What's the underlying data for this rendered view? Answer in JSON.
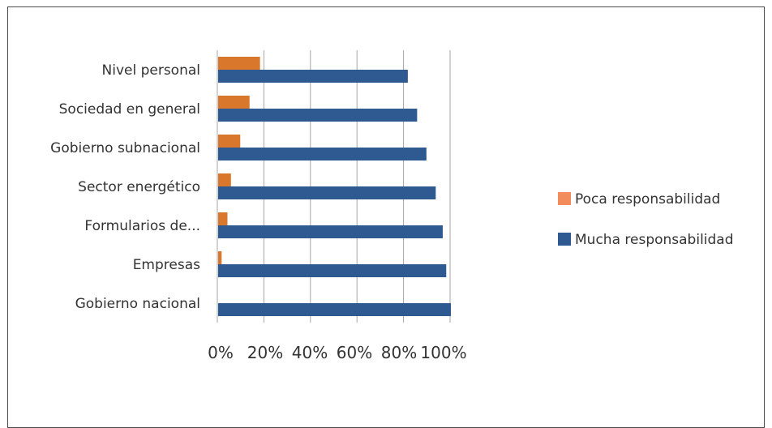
{
  "chart_data": {
    "type": "bar",
    "orientation": "horizontal",
    "categories": [
      "Nivel personal",
      "Sociedad en general",
      "Gobierno subnacional",
      "Sector energético",
      "Formularios de...",
      "Empresas",
      "Gobierno nacional"
    ],
    "series": [
      {
        "name": "Poca responsabilidad",
        "color": "#D9782D",
        "values": [
          18,
          13.5,
          9.5,
          5.5,
          4,
          1.5,
          0
        ]
      },
      {
        "name": "Mucha responsabilidad",
        "color": "#2E5A91",
        "values": [
          81.5,
          85.5,
          89.5,
          93.5,
          96.5,
          98,
          100
        ]
      }
    ],
    "xlim": [
      0,
      100
    ],
    "xticks": [
      "0%",
      "20%",
      "40%",
      "60%",
      "80%",
      "100%"
    ],
    "legend": {
      "position": "right",
      "items": [
        {
          "label": "Poca responsabilidad",
          "color": "#F28C5A"
        },
        {
          "label": "Mucha responsabilidad",
          "color": "#2E5A91"
        }
      ]
    },
    "grid": true
  }
}
